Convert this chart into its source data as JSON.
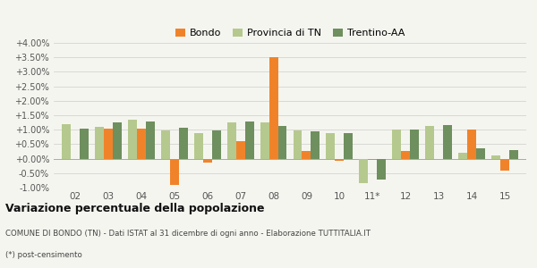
{
  "categories": [
    "02",
    "03",
    "04",
    "05",
    "06",
    "07",
    "08",
    "09",
    "10",
    "11*",
    "12",
    "13",
    "14",
    "15"
  ],
  "bondo": [
    0.0,
    1.05,
    1.05,
    -0.9,
    -0.15,
    0.6,
    3.52,
    0.27,
    -0.07,
    -0.05,
    0.27,
    0.0,
    1.0,
    -0.4
  ],
  "provincia_tn": [
    1.2,
    1.1,
    1.35,
    0.97,
    0.87,
    1.25,
    1.25,
    0.98,
    0.88,
    -0.85,
    1.02,
    1.12,
    0.2,
    0.12
  ],
  "trentino_aa": [
    1.05,
    1.25,
    1.27,
    1.07,
    0.97,
    1.28,
    1.13,
    0.95,
    0.88,
    -0.72,
    1.0,
    1.15,
    0.37,
    0.3
  ],
  "color_bondo": "#f0832a",
  "color_provincia": "#b5c98e",
  "color_trentino": "#6e8f5e",
  "background": "#f5f5f0",
  "title": "Variazione percentuale della popolazione",
  "subtitle": "COMUNE DI BONDO (TN) - Dati ISTAT al 31 dicembre di ogni anno - Elaborazione TUTTITALIA.IT",
  "footnote": "(*) post-censimento",
  "ylim_min": -1.0,
  "ylim_max": 4.0,
  "yticks": [
    -1.0,
    -0.5,
    0.0,
    0.5,
    1.0,
    1.5,
    2.0,
    2.5,
    3.0,
    3.5,
    4.0
  ],
  "bar_width": 0.27
}
